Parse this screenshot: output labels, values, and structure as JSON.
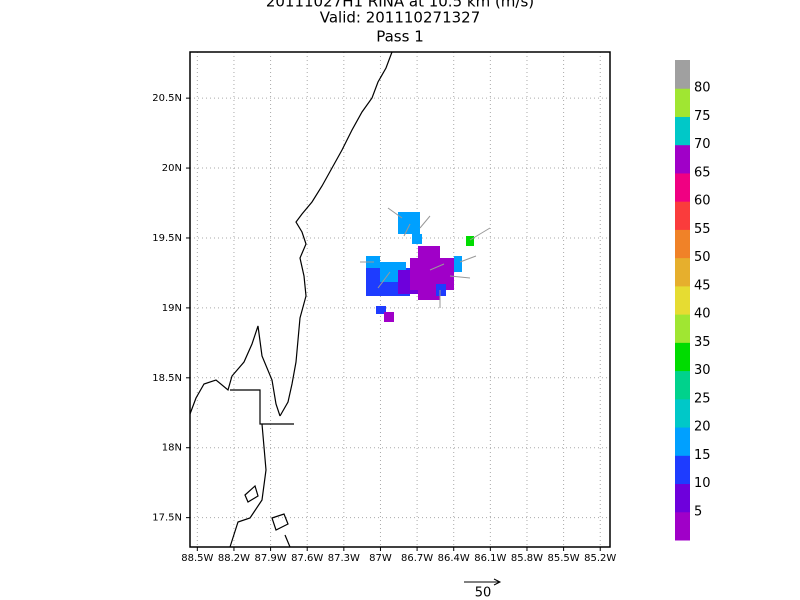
{
  "map": {
    "title": [
      "20111027H1 RINA at 10.5 km (m/s)",
      "Valid: 201110271327",
      "Pass 1"
    ],
    "xlim": [
      -88.56,
      -85.12
    ],
    "ylim": [
      17.29,
      20.83
    ],
    "xticks": [
      {
        "value": -88.5,
        "label": "88.5W"
      },
      {
        "value": -88.2,
        "label": "88.2W"
      },
      {
        "value": -87.9,
        "label": "87.9W"
      },
      {
        "value": -87.6,
        "label": "87.6W"
      },
      {
        "value": -87.3,
        "label": "87.3W"
      },
      {
        "value": -87.0,
        "label": "87W"
      },
      {
        "value": -86.7,
        "label": "86.7W"
      },
      {
        "value": -86.4,
        "label": "86.4W"
      },
      {
        "value": -86.1,
        "label": "86.1W"
      },
      {
        "value": -85.8,
        "label": "85.8W"
      },
      {
        "value": -85.5,
        "label": "85.5W"
      },
      {
        "value": -85.2,
        "label": "85.2W"
      }
    ],
    "yticks": [
      {
        "value": 17.5,
        "label": "17.5N"
      },
      {
        "value": 18.0,
        "label": "18N"
      },
      {
        "value": 18.5,
        "label": "18.5N"
      },
      {
        "value": 19.0,
        "label": "19N"
      },
      {
        "value": 19.5,
        "label": "19.5N"
      },
      {
        "value": 20.0,
        "label": "20N"
      },
      {
        "value": 20.5,
        "label": "20.5N"
      }
    ],
    "grid": true,
    "colorbar": {
      "labels": [
        5,
        10,
        15,
        20,
        25,
        30,
        35,
        40,
        45,
        50,
        55,
        60,
        65,
        70,
        75,
        80
      ],
      "colors": [
        "#a000c8",
        "#6e00dc",
        "#1e3cff",
        "#00a0ff",
        "#00c8c8",
        "#00d28c",
        "#00dc00",
        "#a0e632",
        "#e6dc32",
        "#e6af2d",
        "#f08228",
        "#fa3c3c",
        "#f00082",
        "#a000c8",
        "#00c8c8",
        "#a0e632",
        "#a0a0a0"
      ]
    },
    "vector_legend": "50"
  }
}
